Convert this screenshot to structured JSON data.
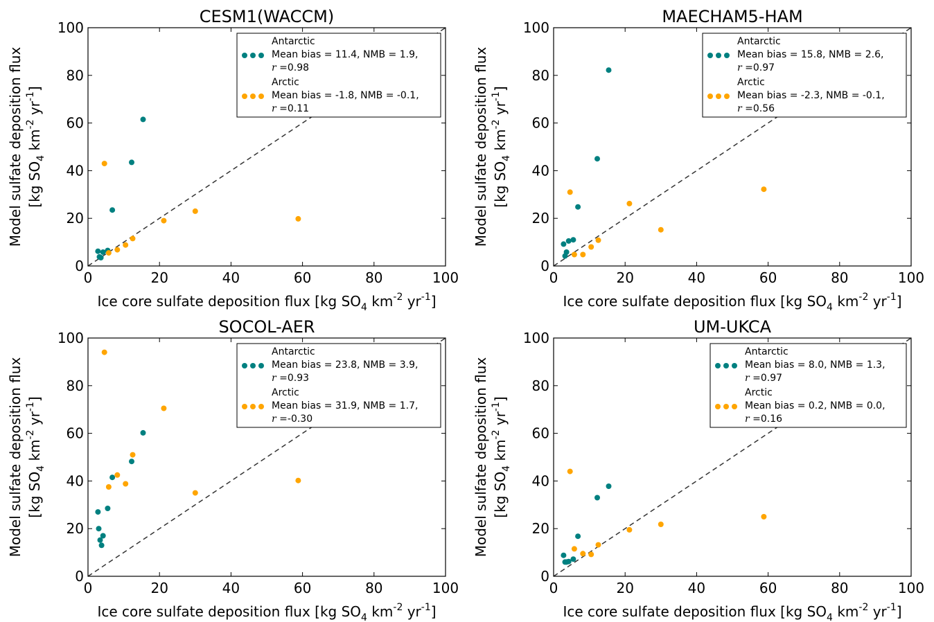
{
  "figure": {
    "colors": {
      "Antarctic": "#008080",
      "Arctic": "#ffa500"
    },
    "ylabel_line1": "Model sulfate deposition flux",
    "ylabel_line2": {
      "a": "[kg SO",
      "sub": "4",
      "b": " km",
      "sup1": "-2",
      "c": " yr",
      "sup2": "-1",
      "d": "]"
    },
    "xlabel": {
      "a": "Ice core sulfate deposition flux [kg SO",
      "sub": "4",
      "b": " km",
      "sup1": "-2",
      "c": " yr",
      "sup2": "-1",
      "d": "]"
    }
  },
  "chart_data": [
    {
      "type": "scatter",
      "title": "CESM1(WACCM)",
      "xlim": [
        0,
        100
      ],
      "ylim": [
        0,
        100
      ],
      "xticks": [
        0,
        20,
        40,
        60,
        80,
        100
      ],
      "yticks": [
        0,
        20,
        40,
        60,
        80,
        100
      ],
      "one_to_one_line": true,
      "legend_position": "top-right",
      "series": [
        {
          "name": "Antarctic",
          "legend_lines": [
            "Mean bias = 11.4, NMB = 1.9,",
            "=0.98"
          ],
          "points": [
            [
              2.8,
              6.2
            ],
            [
              3.2,
              3.8
            ],
            [
              3.6,
              3.5
            ],
            [
              4.2,
              5.8
            ],
            [
              5.5,
              6.5
            ],
            [
              6.8,
              23.5
            ],
            [
              12.2,
              43.5
            ],
            [
              15.4,
              61.5
            ]
          ]
        },
        {
          "name": "Arctic",
          "legend_lines": [
            "Mean bias = -1.8, NMB = -0.1,",
            "=0.11"
          ],
          "points": [
            [
              4.6,
              43.0
            ],
            [
              5.8,
              5.5
            ],
            [
              8.2,
              6.8
            ],
            [
              10.5,
              8.8
            ],
            [
              12.5,
              11.5
            ],
            [
              21.2,
              19.0
            ],
            [
              30.0,
              23.0
            ],
            [
              58.8,
              19.8
            ]
          ]
        }
      ]
    },
    {
      "type": "scatter",
      "title": "MAECHAM5-HAM",
      "xlim": [
        0,
        100
      ],
      "ylim": [
        0,
        100
      ],
      "xticks": [
        0,
        20,
        40,
        60,
        80,
        100
      ],
      "yticks": [
        0,
        20,
        40,
        60,
        80,
        100
      ],
      "one_to_one_line": true,
      "legend_position": "top-right",
      "series": [
        {
          "name": "Antarctic",
          "legend_lines": [
            "Mean bias = 15.8, NMB = 2.6,",
            "=0.97"
          ],
          "points": [
            [
              2.8,
              9.2
            ],
            [
              3.2,
              4.2
            ],
            [
              3.6,
              5.8
            ],
            [
              4.2,
              10.5
            ],
            [
              5.5,
              11.0
            ],
            [
              6.8,
              24.8
            ],
            [
              12.2,
              45.0
            ],
            [
              15.4,
              82.2
            ]
          ]
        },
        {
          "name": "Arctic",
          "legend_lines": [
            "Mean bias = -2.3, NMB = -0.1,",
            "=0.56"
          ],
          "points": [
            [
              4.6,
              31.0
            ],
            [
              5.8,
              4.8
            ],
            [
              8.2,
              4.8
            ],
            [
              10.5,
              8.0
            ],
            [
              12.5,
              10.8
            ],
            [
              21.2,
              26.2
            ],
            [
              30.0,
              15.2
            ],
            [
              58.8,
              32.2
            ]
          ]
        }
      ]
    },
    {
      "type": "scatter",
      "title": "SOCOL-AER",
      "xlim": [
        0,
        100
      ],
      "ylim": [
        0,
        100
      ],
      "xticks": [
        0,
        20,
        40,
        60,
        80,
        100
      ],
      "yticks": [
        0,
        20,
        40,
        60,
        80,
        100
      ],
      "one_to_one_line": true,
      "legend_position": "top-right",
      "series": [
        {
          "name": "Antarctic",
          "legend_lines": [
            "Mean bias = 23.8, NMB = 3.9,",
            "=0.93"
          ],
          "points": [
            [
              2.8,
              27.0
            ],
            [
              3.0,
              20.0
            ],
            [
              3.4,
              15.2
            ],
            [
              3.8,
              13.0
            ],
            [
              4.2,
              17.0
            ],
            [
              5.5,
              28.5
            ],
            [
              6.8,
              41.5
            ],
            [
              12.2,
              48.2
            ],
            [
              15.4,
              60.2
            ]
          ]
        },
        {
          "name": "Arctic",
          "legend_lines": [
            "Mean bias = 31.9, NMB = 1.7,",
            "=-0.30"
          ],
          "points": [
            [
              4.6,
              94.0
            ],
            [
              5.8,
              37.5
            ],
            [
              8.2,
              42.5
            ],
            [
              10.5,
              38.8
            ],
            [
              12.5,
              51.0
            ],
            [
              21.2,
              70.5
            ],
            [
              30.0,
              35.0
            ],
            [
              58.8,
              40.2
            ]
          ]
        }
      ]
    },
    {
      "type": "scatter",
      "title": "UM-UKCA",
      "xlim": [
        0,
        100
      ],
      "ylim": [
        0,
        100
      ],
      "xticks": [
        0,
        20,
        40,
        60,
        80,
        100
      ],
      "yticks": [
        0,
        20,
        40,
        60,
        80,
        100
      ],
      "one_to_one_line": true,
      "legend_position": "top-right",
      "series": [
        {
          "name": "Antarctic",
          "legend_lines": [
            "Mean bias = 8.0, NMB = 1.3,",
            "=0.97"
          ],
          "points": [
            [
              2.8,
              8.8
            ],
            [
              3.2,
              6.0
            ],
            [
              3.6,
              6.0
            ],
            [
              4.2,
              6.2
            ],
            [
              5.5,
              7.2
            ],
            [
              6.8,
              16.8
            ],
            [
              12.2,
              33.0
            ],
            [
              15.4,
              37.8
            ]
          ]
        },
        {
          "name": "Arctic",
          "legend_lines": [
            "Mean bias = 0.2, NMB = 0.0,",
            "=0.16"
          ],
          "points": [
            [
              4.6,
              44.0
            ],
            [
              5.8,
              11.5
            ],
            [
              8.2,
              9.5
            ],
            [
              10.5,
              9.2
            ],
            [
              12.5,
              13.2
            ],
            [
              21.2,
              19.5
            ],
            [
              30.0,
              21.8
            ],
            [
              58.8,
              25.0
            ]
          ]
        }
      ]
    }
  ]
}
